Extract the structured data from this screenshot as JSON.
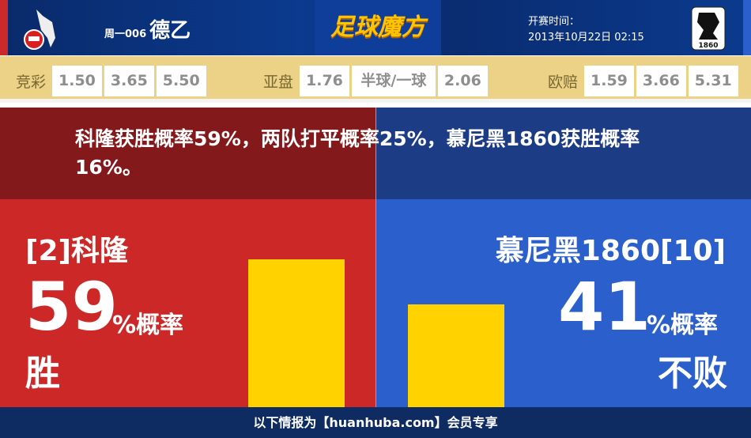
{
  "header": {
    "match_no": "周一006",
    "league": "德乙",
    "brand": "足球魔方",
    "time_label": "开赛时间：",
    "time_value": "2013年10月22日 02:15",
    "home_logo": "fc-koln-logo",
    "away_logo": "1860-munich-logo",
    "away_logo_text": "1860"
  },
  "odds": {
    "jingcai": {
      "label": "竞彩",
      "values": [
        "1.50",
        "3.65",
        "5.50"
      ]
    },
    "yapan": {
      "label": "亚盘",
      "values": [
        "1.76",
        "半球/一球",
        "2.06"
      ]
    },
    "oupei": {
      "label": "欧赔",
      "values": [
        "1.59",
        "3.66",
        "5.31"
      ]
    }
  },
  "summary": "科隆获胜概率59%，两队打平概率25%，慕尼黑1860获胜概率16%。",
  "home": {
    "name": "[2]科隆",
    "percent": "59",
    "percent_label": "%概率",
    "result": "胜",
    "value": 59
  },
  "away": {
    "name": "慕尼黑1860[10]",
    "percent": "41",
    "percent_label": "%概率",
    "result": "不败",
    "value": 41
  },
  "colors": {
    "home": "#cc2828",
    "away": "#2a5fcc",
    "bar": "#ffd200"
  },
  "footer": "以下情报为【huanhuba.com】会员专享"
}
